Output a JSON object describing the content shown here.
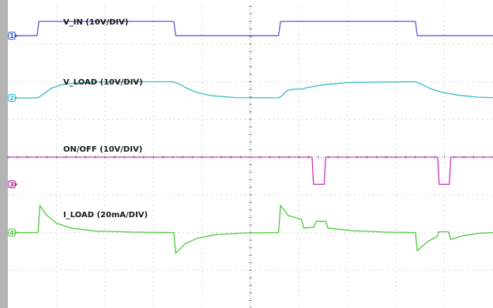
{
  "chart_data": {
    "type": "line",
    "title": "",
    "xlabel": "",
    "ylabel": "",
    "grid": true,
    "x_divisions": 10,
    "y_divisions": 8,
    "xlim": [
      0,
      10
    ],
    "ylim": [
      -4,
      4
    ],
    "series": [
      {
        "name": "V_IN (10V/DIV)",
        "channel": "1",
        "color": "#6a56d6",
        "points": [
          [
            0.0,
            3.22
          ],
          [
            0.6,
            3.22
          ],
          [
            0.64,
            3.6
          ],
          [
            3.42,
            3.6
          ],
          [
            3.46,
            3.22
          ],
          [
            5.58,
            3.22
          ],
          [
            5.62,
            3.6
          ],
          [
            8.4,
            3.6
          ],
          [
            8.44,
            3.22
          ],
          [
            10.0,
            3.22
          ]
        ]
      },
      {
        "name": "V_LOAD (10V/DIV)",
        "channel": "2",
        "color": "#33bcc9",
        "points": [
          [
            0.0,
            1.57
          ],
          [
            0.62,
            1.57
          ],
          [
            0.75,
            1.69
          ],
          [
            0.9,
            1.83
          ],
          [
            1.1,
            1.92
          ],
          [
            1.4,
            1.97
          ],
          [
            1.8,
            1.99
          ],
          [
            2.4,
            2.0
          ],
          [
            3.4,
            2.0
          ],
          [
            3.55,
            1.93
          ],
          [
            3.7,
            1.82
          ],
          [
            3.9,
            1.71
          ],
          [
            4.2,
            1.63
          ],
          [
            4.7,
            1.58
          ],
          [
            5.58,
            1.57
          ],
          [
            5.65,
            1.63
          ],
          [
            5.75,
            1.76
          ],
          [
            5.85,
            1.8
          ],
          [
            6.1,
            1.81
          ],
          [
            6.15,
            1.84
          ],
          [
            6.5,
            1.92
          ],
          [
            7.0,
            1.98
          ],
          [
            7.6,
            1.99
          ],
          [
            8.4,
            2.0
          ],
          [
            8.55,
            1.92
          ],
          [
            8.7,
            1.82
          ],
          [
            8.95,
            1.72
          ],
          [
            9.3,
            1.64
          ],
          [
            9.7,
            1.59
          ],
          [
            10.0,
            1.58
          ]
        ]
      },
      {
        "name": "ON/OFF (10V/DIV)",
        "channel": "3",
        "color": "#cc33b3",
        "points": [
          [
            0.0,
            0.0
          ],
          [
            6.27,
            0.0
          ],
          [
            6.3,
            -0.72
          ],
          [
            6.52,
            -0.72
          ],
          [
            6.55,
            0.0
          ],
          [
            8.86,
            0.0
          ],
          [
            8.89,
            -0.72
          ],
          [
            9.1,
            -0.72
          ],
          [
            9.13,
            0.0
          ],
          [
            10.0,
            0.0
          ]
        ]
      },
      {
        "name": "I_LOAD (20mA/DIV)",
        "channel": "4",
        "color": "#4cc83a",
        "points": [
          [
            0.0,
            -2.0
          ],
          [
            0.62,
            -2.0
          ],
          [
            0.66,
            -1.28
          ],
          [
            0.8,
            -1.54
          ],
          [
            1.0,
            -1.75
          ],
          [
            1.3,
            -1.88
          ],
          [
            1.8,
            -1.96
          ],
          [
            2.6,
            -1.99
          ],
          [
            3.42,
            -2.0
          ],
          [
            3.46,
            -2.55
          ],
          [
            3.65,
            -2.3
          ],
          [
            3.9,
            -2.15
          ],
          [
            4.3,
            -2.05
          ],
          [
            4.9,
            -2.01
          ],
          [
            5.58,
            -2.0
          ],
          [
            5.62,
            -1.28
          ],
          [
            5.78,
            -1.55
          ],
          [
            6.05,
            -1.65
          ],
          [
            6.1,
            -1.88
          ],
          [
            6.3,
            -1.86
          ],
          [
            6.36,
            -1.7
          ],
          [
            6.55,
            -1.7
          ],
          [
            6.6,
            -1.88
          ],
          [
            7.1,
            -1.95
          ],
          [
            7.8,
            -1.99
          ],
          [
            8.4,
            -2.0
          ],
          [
            8.44,
            -2.48
          ],
          [
            8.65,
            -2.24
          ],
          [
            8.85,
            -2.1
          ],
          [
            8.88,
            -1.98
          ],
          [
            9.08,
            -1.98
          ],
          [
            9.13,
            -2.18
          ],
          [
            9.4,
            -2.08
          ],
          [
            9.7,
            -2.02
          ],
          [
            10.0,
            -2.0
          ]
        ]
      }
    ]
  },
  "channel_markers": [
    {
      "label": "1",
      "color": "#2e4bd6",
      "level": 3.22
    },
    {
      "label": "2",
      "color": "#33bcc9",
      "level": 1.57
    },
    {
      "label": "3",
      "color": "#a3208f",
      "level": -0.72
    },
    {
      "label": "4",
      "color": "#4cc83a",
      "level": -2.0
    }
  ]
}
